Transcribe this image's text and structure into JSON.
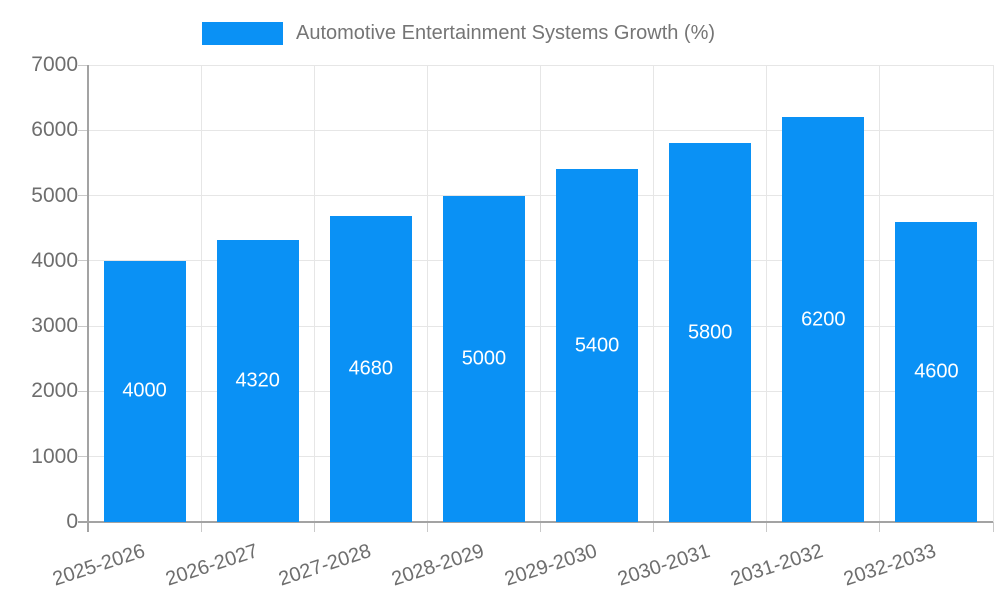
{
  "legend": {
    "label": "Automotive Entertainment Systems Growth (%)"
  },
  "chart_data": {
    "type": "bar",
    "title": "Automotive Entertainment Systems Growth (%)",
    "categories": [
      "2025-2026",
      "2026-2027",
      "2027-2028",
      "2028-2029",
      "2029-2030",
      "2030-2031",
      "2031-2032",
      "2032-2033"
    ],
    "values": [
      4000,
      4320,
      4680,
      5000,
      5400,
      5800,
      6200,
      4600
    ],
    "bar_value_labels": [
      "4000",
      "4320",
      "4680",
      "5000",
      "5400",
      "5800",
      "6200",
      "4600"
    ],
    "xlabel": "",
    "ylabel": "",
    "ylim": [
      0,
      7000
    ],
    "yticks": [
      0,
      1000,
      2000,
      3000,
      4000,
      5000,
      6000,
      7000
    ],
    "grid": true,
    "legend_position": "top",
    "colors": {
      "bar": "#0a91f5",
      "bar_label": "#ffffff",
      "gridline": "#e6e6e6",
      "tick": "#c9c9c9",
      "axis_line": "#a3a3a3",
      "axis_text": "#6e6e6e",
      "legend_text": "#757575"
    }
  }
}
